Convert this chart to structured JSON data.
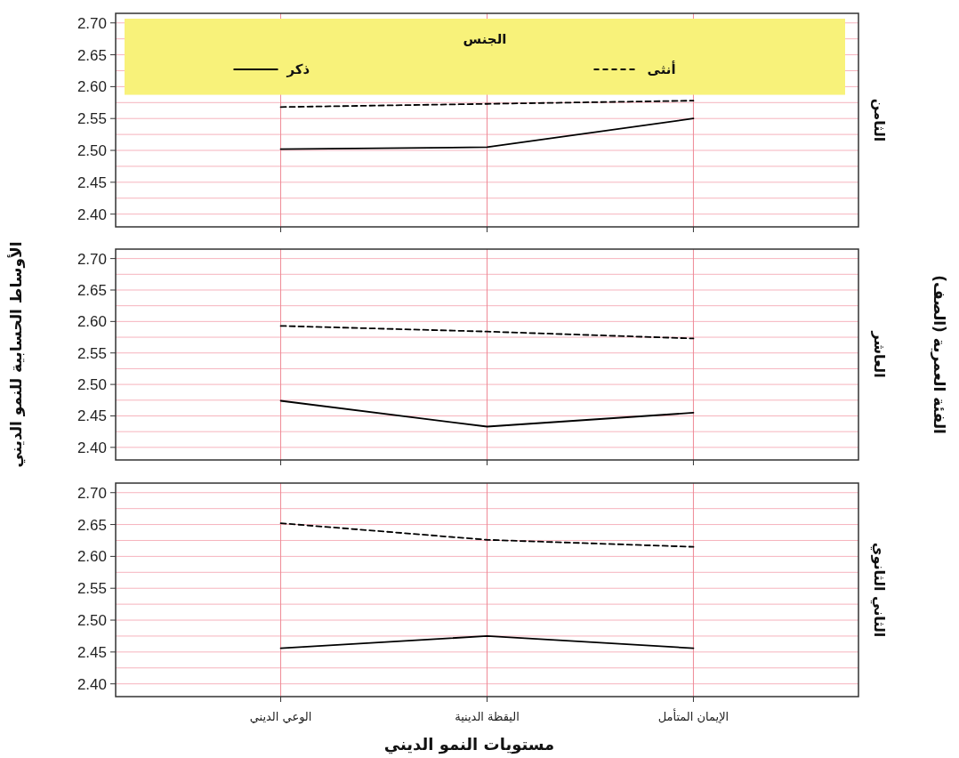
{
  "chart_data": [
    {
      "type": "line",
      "annotations": [
        "الثامن"
      ],
      "categories": [
        null,
        null,
        null
      ],
      "ylim": [
        2.38,
        2.715
      ],
      "yticks": [
        {
          "value": 2.4,
          "label": "2.40"
        },
        {
          "value": 2.425,
          "label": null
        },
        2.45,
        {
          "value": 2.475,
          "label": null
        },
        {
          "value": 2.5,
          "label": "2.50"
        },
        {
          "value": 2.525,
          "label": null
        },
        2.55,
        {
          "value": 2.575,
          "label": null
        },
        {
          "value": 2.6,
          "label": "2.60"
        },
        {
          "value": 2.625,
          "label": null
        },
        2.65,
        {
          "value": 2.675,
          "label": null
        },
        {
          "value": 2.7,
          "label": "2.70"
        }
      ],
      "grid": true,
      "tick_labels": "y",
      "legend": "top",
      "legend_title": "الجنس",
      "series": [
        {
          "name": "ذكر",
          "color": "#000000",
          "line_style": "solid",
          "values": [
            2.502,
            2.505,
            2.55
          ]
        },
        {
          "name": "أنثى",
          "color": "#000000",
          "line_style": "dashed",
          "values": [
            2.568,
            2.573,
            2.578
          ]
        }
      ]
    },
    {
      "type": "line",
      "ylabel": "الأوساط الحسابية للنمو الديني",
      "annotations": [
        "العاشر",
        "الفئة العمرية (الصف)"
      ],
      "categories": [
        null,
        null,
        null
      ],
      "ylim": [
        2.38,
        2.715
      ],
      "yticks": [
        {
          "value": 2.4,
          "label": "2.40"
        },
        {
          "value": 2.425,
          "label": null
        },
        2.45,
        {
          "value": 2.475,
          "label": null
        },
        {
          "value": 2.5,
          "label": "2.50"
        },
        {
          "value": 2.525,
          "label": null
        },
        2.55,
        {
          "value": 2.575,
          "label": null
        },
        {
          "value": 2.6,
          "label": "2.60"
        },
        {
          "value": 2.625,
          "label": null
        },
        2.65,
        {
          "value": 2.675,
          "label": null
        },
        {
          "value": 2.7,
          "label": "2.70"
        }
      ],
      "grid": true,
      "tick_labels": "y",
      "series": [
        {
          "color": "#000000",
          "line_style": "solid",
          "values": [
            2.474,
            2.433,
            2.455
          ]
        },
        {
          "color": "#000000",
          "line_style": "dashed",
          "values": [
            2.593,
            2.584,
            2.573
          ]
        }
      ]
    },
    {
      "type": "line",
      "annotations": [
        "الثاني الثانوي"
      ],
      "xlabel": "مستويات النمو الديني",
      "categories": [
        "الوعي الديني",
        "اليقظة الدينية",
        "الإيمان المتأمل"
      ],
      "ylim": [
        2.38,
        2.715
      ],
      "yticks": [
        {
          "value": 2.4,
          "label": "2.40"
        },
        {
          "value": 2.425,
          "label": null
        },
        2.45,
        {
          "value": 2.475,
          "label": null
        },
        {
          "value": 2.5,
          "label": "2.50"
        },
        {
          "value": 2.525,
          "label": null
        },
        2.55,
        {
          "value": 2.575,
          "label": null
        },
        {
          "value": 2.6,
          "label": "2.60"
        },
        {
          "value": 2.625,
          "label": null
        },
        2.65,
        {
          "value": 2.675,
          "label": null
        },
        {
          "value": 2.7,
          "label": "2.70"
        }
      ],
      "grid": true,
      "series": [
        {
          "color": "#000000",
          "line_style": "solid",
          "values": [
            2.456,
            2.475,
            2.456
          ]
        },
        {
          "color": "#000000",
          "line_style": "dashed",
          "values": [
            2.652,
            2.626,
            2.615
          ]
        }
      ]
    }
  ]
}
